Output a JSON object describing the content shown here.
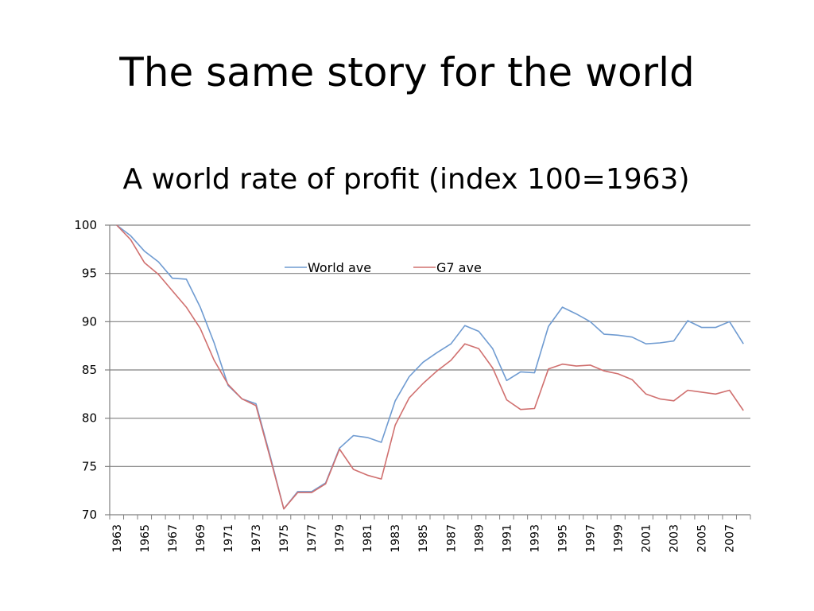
{
  "slide": {
    "title": "The same story for the world"
  },
  "colors": {
    "world": "#6f9bd1",
    "g7": "#d0706f",
    "grid": "#808080",
    "axis": "#808080"
  },
  "chart_data": {
    "type": "line",
    "title": "A world rate of profit (index 100=1963)",
    "xlabel": "",
    "ylabel": "",
    "ylim": [
      70,
      100
    ],
    "yticks": [
      70,
      75,
      80,
      85,
      90,
      95,
      100
    ],
    "x": [
      1963,
      1964,
      1965,
      1966,
      1967,
      1968,
      1969,
      1970,
      1971,
      1972,
      1973,
      1974,
      1975,
      1976,
      1977,
      1978,
      1979,
      1980,
      1981,
      1982,
      1983,
      1984,
      1985,
      1986,
      1987,
      1988,
      1989,
      1990,
      1991,
      1992,
      1993,
      1994,
      1995,
      1996,
      1997,
      1998,
      1999,
      2000,
      2001,
      2002,
      2003,
      2004,
      2005,
      2006,
      2007,
      2008
    ],
    "xtick_labels": [
      "1963",
      "1965",
      "1967",
      "1969",
      "1971",
      "1973",
      "1975",
      "1977",
      "1979",
      "1981",
      "1983",
      "1985",
      "1987",
      "1989",
      "1991",
      "1993",
      "1995",
      "1997",
      "1999",
      "2001",
      "2003",
      "2005",
      "2007"
    ],
    "legend_position": "top-center",
    "series": [
      {
        "name": "World ave",
        "color_key": "world",
        "values": [
          100,
          98.9,
          97.3,
          96.2,
          94.5,
          94.4,
          91.5,
          87.8,
          83.4,
          82,
          81.5,
          76.2,
          70.6,
          72.4,
          72.4,
          73.3,
          76.9,
          78.2,
          78.0,
          77.5,
          81.8,
          84.3,
          85.8,
          86.8,
          87.7,
          89.6,
          89.0,
          87.2,
          83.9,
          84.8,
          84.7,
          89.5,
          91.5,
          90.8,
          90.0,
          88.7,
          88.6,
          88.4,
          87.7,
          87.8,
          88.0,
          90.1,
          89.4,
          89.4,
          90.0,
          87.7
        ]
      },
      {
        "name": "G7 ave",
        "color_key": "g7",
        "values": [
          100,
          98.5,
          96.1,
          94.9,
          93.2,
          91.5,
          89.3,
          86.0,
          83.5,
          82,
          81.3,
          76.0,
          70.6,
          72.3,
          72.3,
          73.2,
          76.8,
          74.7,
          74.1,
          73.7,
          79.3,
          82.1,
          83.6,
          84.9,
          86.0,
          87.7,
          87.2,
          85.2,
          81.9,
          80.9,
          81.0,
          85.1,
          85.6,
          85.4,
          85.5,
          84.9,
          84.6,
          84.0,
          82.5,
          82.0,
          81.8,
          82.9,
          82.7,
          82.5,
          82.9,
          80.8
        ]
      }
    ]
  }
}
